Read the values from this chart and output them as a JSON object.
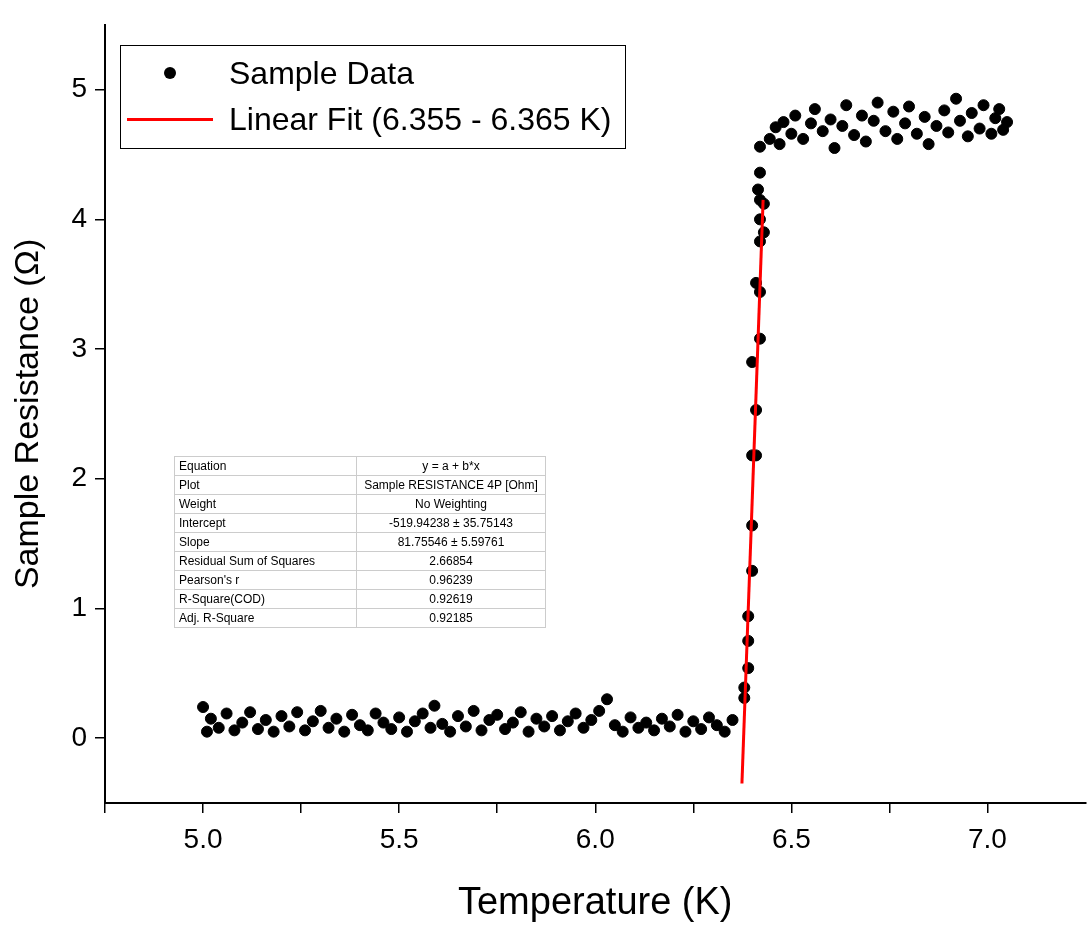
{
  "chart_data": {
    "type": "scatter",
    "xlabel": "Temperature (K)",
    "ylabel": "Sample Resistance (Ω)",
    "legend": "top left",
    "xlim": [
      4.75,
      7.25
    ],
    "ylim": [
      -0.5,
      5.5
    ],
    "xticks": [
      {
        "value": 4.75,
        "label": null
      },
      {
        "value": 5,
        "label": "5.0"
      },
      {
        "value": 5.25,
        "label": null
      },
      {
        "value": 5.5,
        "label": "5.5"
      },
      {
        "value": 5.75,
        "label": null
      },
      {
        "value": 6,
        "label": "6.0"
      },
      {
        "value": 6.25,
        "label": null
      },
      {
        "value": 6.5,
        "label": "6.5"
      },
      {
        "value": 6.75,
        "label": null
      },
      {
        "value": 7,
        "label": "7.0"
      }
    ],
    "yticks": [
      0,
      1,
      2,
      3,
      4,
      5
    ],
    "series": [
      {
        "name": "Sample Data",
        "marker": "circle",
        "color": "#000000",
        "x": [
          5.0,
          5.01,
          5.02,
          5.04,
          5.06,
          5.08,
          5.1,
          5.12,
          5.14,
          5.16,
          5.18,
          5.2,
          5.22,
          5.24,
          5.26,
          5.28,
          5.3,
          5.32,
          5.34,
          5.36,
          5.38,
          5.4,
          5.42,
          5.44,
          5.46,
          5.48,
          5.5,
          5.52,
          5.54,
          5.56,
          5.58,
          5.59,
          5.61,
          5.63,
          5.65,
          5.67,
          5.69,
          5.71,
          5.73,
          5.75,
          5.77,
          5.79,
          5.81,
          5.83,
          5.85,
          5.87,
          5.89,
          5.91,
          5.93,
          5.95,
          5.97,
          5.99,
          6.01,
          6.03,
          6.05,
          6.07,
          6.09,
          6.11,
          6.13,
          6.15,
          6.17,
          6.19,
          6.21,
          6.23,
          6.25,
          6.27,
          6.29,
          6.31,
          6.33,
          6.35,
          6.38,
          6.38,
          6.39,
          6.39,
          6.39,
          6.4,
          6.4,
          6.4,
          6.41,
          6.41,
          6.4,
          6.42,
          6.42,
          6.41,
          6.42,
          6.43,
          6.42,
          6.43,
          6.42,
          6.415,
          6.42,
          6.42,
          6.445,
          6.46,
          6.47,
          6.48,
          6.5,
          6.51,
          6.53,
          6.55,
          6.56,
          6.58,
          6.6,
          6.61,
          6.63,
          6.64,
          6.66,
          6.68,
          6.69,
          6.71,
          6.72,
          6.74,
          6.76,
          6.77,
          6.79,
          6.8,
          6.82,
          6.84,
          6.85,
          6.87,
          6.89,
          6.9,
          6.92,
          6.93,
          6.95,
          6.96,
          6.98,
          6.99,
          7.01,
          7.02,
          7.03,
          7.04,
          7.05
        ],
        "values": [
          0.24,
          0.05,
          0.15,
          0.08,
          0.19,
          0.06,
          0.12,
          0.2,
          0.07,
          0.14,
          0.05,
          0.17,
          0.09,
          0.2,
          0.06,
          0.13,
          0.21,
          0.08,
          0.15,
          0.05,
          0.18,
          0.1,
          0.06,
          0.19,
          0.12,
          0.07,
          0.16,
          0.05,
          0.13,
          0.19,
          0.08,
          0.25,
          0.11,
          0.05,
          0.17,
          0.09,
          0.21,
          0.06,
          0.14,
          0.18,
          0.07,
          0.12,
          0.2,
          0.05,
          0.15,
          0.09,
          0.17,
          0.06,
          0.13,
          0.19,
          0.08,
          0.14,
          0.21,
          0.3,
          0.1,
          0.05,
          0.16,
          0.08,
          0.12,
          0.06,
          0.15,
          0.09,
          0.18,
          0.05,
          0.13,
          0.07,
          0.16,
          0.1,
          0.05,
          0.14,
          0.31,
          0.39,
          0.54,
          0.75,
          0.94,
          1.29,
          1.64,
          2.18,
          2.18,
          2.53,
          2.9,
          3.08,
          3.44,
          3.51,
          3.83,
          3.9,
          4.0,
          4.12,
          4.15,
          4.23,
          4.36,
          4.56,
          4.62,
          4.71,
          4.58,
          4.75,
          4.66,
          4.8,
          4.62,
          4.74,
          4.85,
          4.68,
          4.77,
          4.55,
          4.72,
          4.88,
          4.65,
          4.8,
          4.6,
          4.76,
          4.9,
          4.68,
          4.83,
          4.62,
          4.74,
          4.87,
          4.66,
          4.79,
          4.58,
          4.72,
          4.84,
          4.67,
          4.93,
          4.76,
          4.64,
          4.82,
          4.7,
          4.88,
          4.66,
          4.78,
          4.85,
          4.69,
          4.75
        ]
      },
      {
        "name": "Linear Fit (6.355 - 6.365 K)",
        "type": "line",
        "color": "#ff0000",
        "x": [
          6.374,
          6.428
        ],
        "values": [
          -0.35,
          4.15
        ]
      }
    ],
    "annotations": [
      "Equation",
      "y = a + b*x",
      "Plot",
      "Sample RESISTANCE 4P [Ohm]",
      "Weight",
      "No Weighting",
      "Intercept",
      "-519.94238 ± 35.75143",
      "Slope",
      "81.75546 ± 5.59761",
      "Residual Sum of Squares",
      "2.66854",
      "Pearson's r",
      "0.96239",
      "R-Square(COD)",
      "0.92619",
      "Adj. R-Square",
      "0.92185"
    ]
  }
}
